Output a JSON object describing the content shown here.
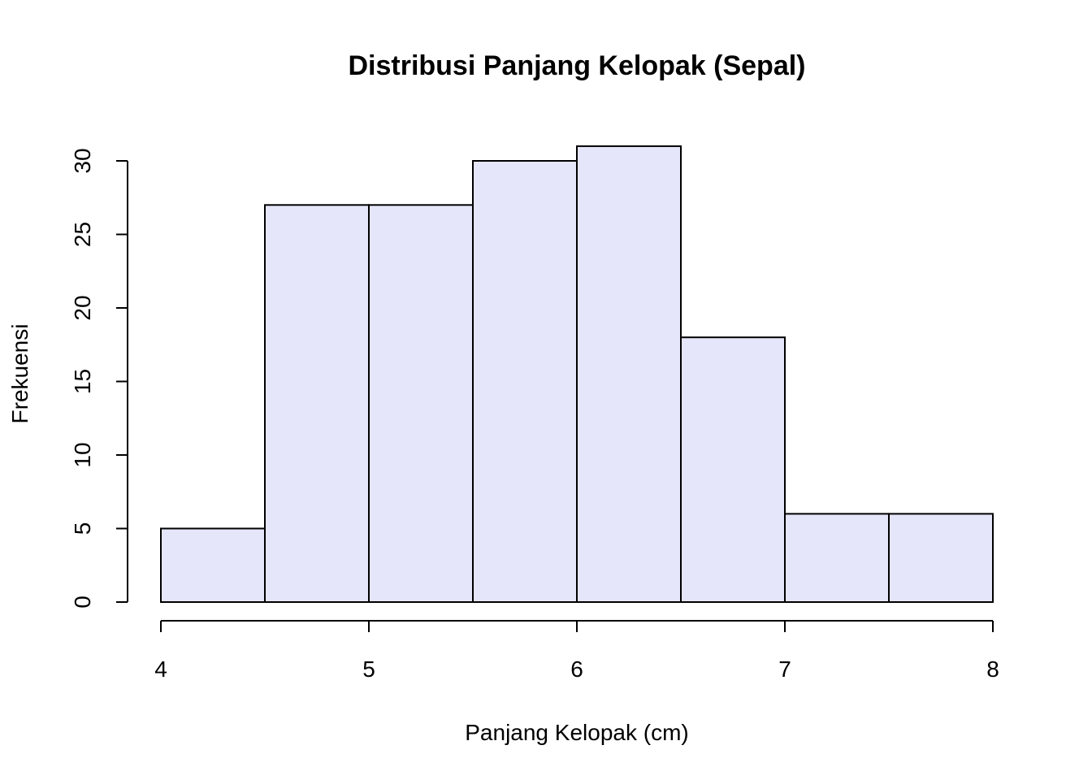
{
  "chart_data": {
    "type": "bar",
    "subtype": "histogram",
    "title": "Distribusi Panjang Kelopak (Sepal)",
    "xlabel": "Panjang Kelopak (cm)",
    "ylabel": "Frekuensi",
    "bins": [
      {
        "from": 4.0,
        "to": 4.5,
        "count": 5
      },
      {
        "from": 4.5,
        "to": 5.0,
        "count": 27
      },
      {
        "from": 5.0,
        "to": 5.5,
        "count": 27
      },
      {
        "from": 5.5,
        "to": 6.0,
        "count": 30
      },
      {
        "from": 6.0,
        "to": 6.5,
        "count": 31
      },
      {
        "from": 6.5,
        "to": 7.0,
        "count": 18
      },
      {
        "from": 7.0,
        "to": 7.5,
        "count": 6
      },
      {
        "from": 7.5,
        "to": 8.0,
        "count": 6
      }
    ],
    "xlim": [
      4,
      8
    ],
    "ylim": [
      0,
      30
    ],
    "xticks": [
      "4",
      "5",
      "6",
      "7",
      "8"
    ],
    "yticks": [
      "0",
      "5",
      "10",
      "15",
      "20",
      "25",
      "30"
    ],
    "bar_color": "#E6E6FA",
    "edge_color": "#000000",
    "grid": false,
    "legend": "none"
  }
}
